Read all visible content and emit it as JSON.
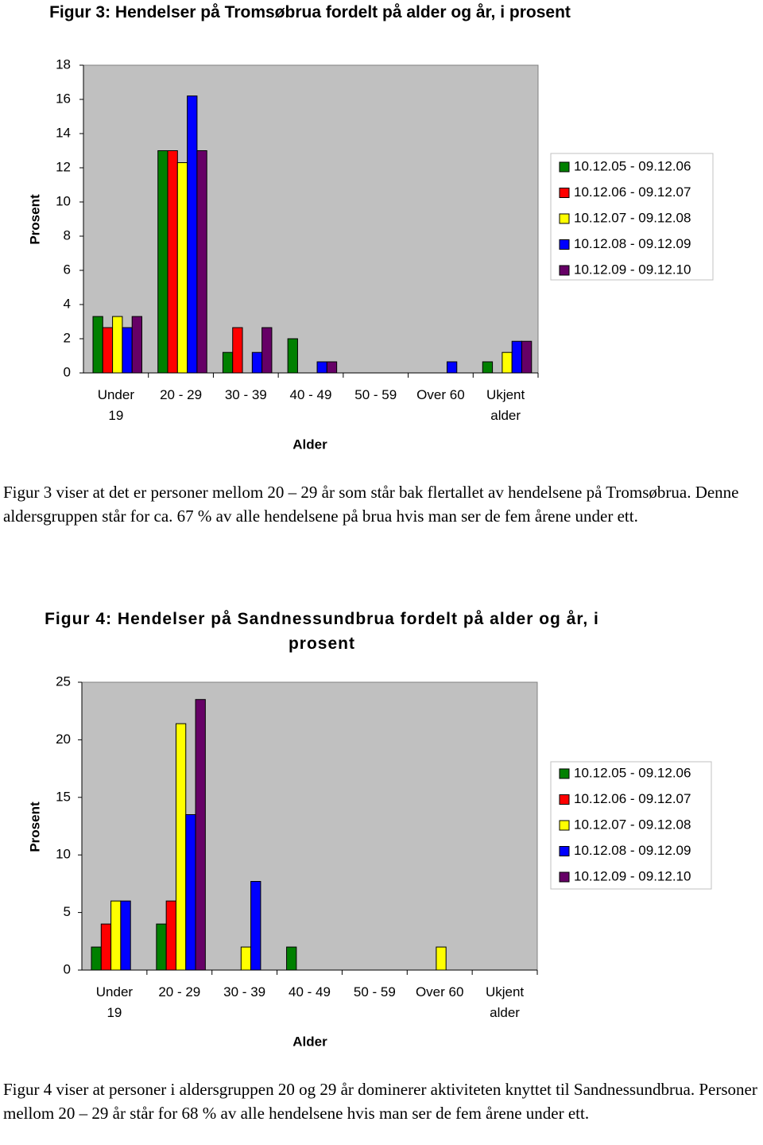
{
  "chart_data": [
    {
      "type": "bar",
      "title": "Figur 3: Hendelser på Tromsøbrua fordelt på alder og år, i prosent",
      "y_label": "Prosent",
      "x_label": "Alder",
      "categories": [
        "Under 19",
        "20 - 29",
        "30 - 39",
        "40 - 49",
        "50 - 59",
        "Over 60",
        "Ukjent alder"
      ],
      "series": [
        {
          "name": "10.12.05 - 09.12.06",
          "color": "#008000",
          "values": [
            3.3,
            13.0,
            1.2,
            2.0,
            0,
            0,
            0.65
          ]
        },
        {
          "name": "10.12.06 - 09.12.07",
          "color": "#ff0000",
          "values": [
            2.65,
            13.0,
            2.65,
            0,
            0,
            0,
            0
          ]
        },
        {
          "name": "10.12.07 - 09.12.08",
          "color": "#ffff00",
          "values": [
            3.3,
            12.3,
            0,
            0,
            0,
            0,
            1.2
          ]
        },
        {
          "name": "10.12.08 - 09.12.09",
          "color": "#0000ff",
          "values": [
            2.65,
            16.2,
            1.2,
            0.65,
            0,
            0.65,
            1.85
          ]
        },
        {
          "name": "10.12.09 - 09.12.10",
          "color": "#660066",
          "values": [
            3.3,
            13.0,
            2.65,
            0.65,
            0,
            0,
            1.85
          ]
        }
      ],
      "ylim": [
        0,
        18
      ],
      "yticks": [
        0,
        2,
        4,
        6,
        8,
        10,
        12,
        14,
        16,
        18
      ],
      "grid": false,
      "legend": "right"
    },
    {
      "type": "bar",
      "title": "Figur 4: Hendelser på Sandnessundbrua fordelt på alder og år, i prosent",
      "y_label": "Prosent",
      "x_label": "Alder",
      "categories": [
        "Under 19",
        "20 - 29",
        "30 - 39",
        "40 - 49",
        "50 - 59",
        "Over 60",
        "Ukjent alder"
      ],
      "series": [
        {
          "name": "10.12.05 - 09.12.06",
          "color": "#008000",
          "values": [
            2,
            4,
            0,
            2,
            0,
            0,
            0
          ]
        },
        {
          "name": "10.12.06 - 09.12.07",
          "color": "#ff0000",
          "values": [
            4,
            6,
            0,
            0,
            0,
            0,
            0
          ]
        },
        {
          "name": "10.12.07 - 09.12.08",
          "color": "#ffff00",
          "values": [
            6,
            21.4,
            2,
            0,
            0,
            2,
            0
          ]
        },
        {
          "name": "10.12.08 - 09.12.09",
          "color": "#0000ff",
          "values": [
            6,
            13.5,
            7.7,
            0,
            0,
            0,
            0
          ]
        },
        {
          "name": "10.12.09 - 09.12.10",
          "color": "#660066",
          "values": [
            0,
            23.5,
            0,
            0,
            0,
            0,
            0
          ]
        }
      ],
      "ylim": [
        0,
        25
      ],
      "yticks": [
        0,
        5,
        10,
        15,
        20,
        25
      ],
      "grid": false,
      "legend": "right"
    }
  ],
  "paragraphs": [
    "Figur 3 viser at det er personer mellom 20 – 29 år som står bak flertallet av hendelsene på Tromsøbrua. Denne aldersgruppen står for ca. 67 % av alle hendelsene på brua hvis man ser de fem årene under ett.",
    "Figur 4 viser at personer i aldersgruppen 20 og 29 år dominerer aktiviteten knyttet til Sandnessundbrua. Personer mellom 20 – 29 år står for 68 % av alle hendelsene hvis man ser de fem årene under ett."
  ]
}
